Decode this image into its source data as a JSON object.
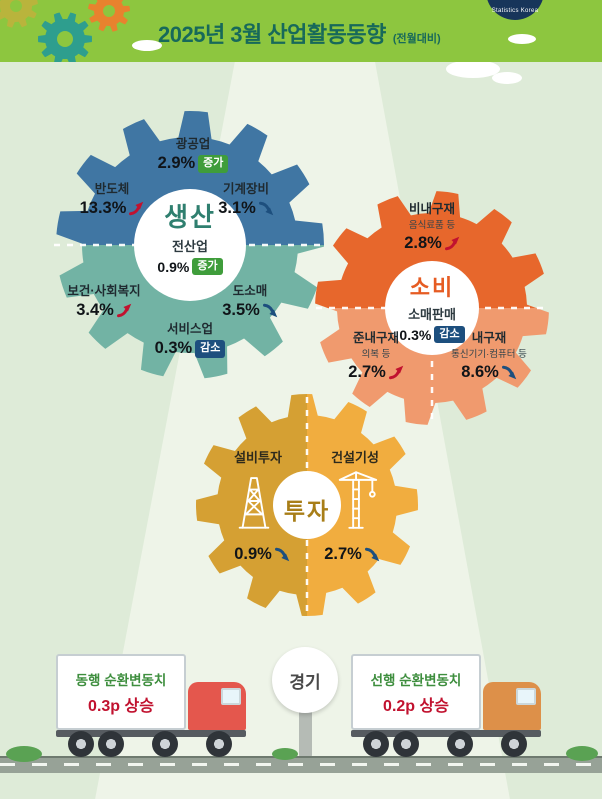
{
  "header": {
    "title": "2025년 3월 산업활동동향",
    "subtitle": "(전월대비)",
    "logo_text": "Statistics Korea"
  },
  "production": {
    "center": {
      "title": "생산",
      "subtitle": "전산업",
      "value": "0.9%",
      "badge": "증가"
    },
    "items": {
      "mining": {
        "label": "광공업",
        "value": "2.9%",
        "badge": "증가"
      },
      "semiconductor": {
        "label": "반도체",
        "value": "13.3%",
        "direction": "up"
      },
      "machinery": {
        "label": "기계장비",
        "value": "3.1%",
        "direction": "down"
      },
      "health": {
        "label": "보건·사회복지",
        "value": "3.4%",
        "direction": "up"
      },
      "retail": {
        "label": "도소매",
        "value": "3.5%",
        "direction": "down"
      },
      "services": {
        "label": "서비스업",
        "value": "0.3%",
        "badge": "감소"
      }
    }
  },
  "consumption": {
    "center": {
      "title": "소비",
      "subtitle": "소매판매",
      "value": "0.3%",
      "badge": "감소"
    },
    "items": {
      "nondurable": {
        "label": "비내구재",
        "sublabel": "음식료품 등",
        "value": "2.8%",
        "direction": "up"
      },
      "semidurable": {
        "label": "준내구재",
        "sublabel": "의복 등",
        "value": "2.7%",
        "direction": "up"
      },
      "durable": {
        "label": "내구재",
        "sublabel": "통신기기·컴퓨터 등",
        "value": "8.6%",
        "direction": "down"
      }
    }
  },
  "investment": {
    "center": {
      "title": "투자"
    },
    "items": {
      "facility": {
        "label": "설비투자",
        "value": "0.9%",
        "direction": "down"
      },
      "construction": {
        "label": "건설기성",
        "value": "2.7%",
        "direction": "down"
      }
    }
  },
  "economy": {
    "center": "경기",
    "coincident": {
      "label": "동행 순환변동치",
      "value": "0.3p 상승"
    },
    "leading": {
      "label": "선행 순환변동치",
      "value": "0.2p 상승"
    }
  },
  "icons": {
    "increase": "red up-right swoosh arrow",
    "decrease": "blue down-right swoosh arrow",
    "facility_investment": "oil-derrick lattice tower",
    "construction": "tower-crane with hook",
    "economy": "cargo trucks on road",
    "decoration": "interlocking gears and clouds"
  },
  "colors": {
    "header_green": "#8dc63f",
    "title_text": "#17695a",
    "production_top": "#4076a3",
    "production_bottom": "#72b3a4",
    "consumption_top": "#e7672c",
    "consumption_bottom": "#f09a6e",
    "investment_left": "#d5a033",
    "investment_right": "#f1ad3f",
    "increase_red": "#c1122f",
    "decrease_blue": "#1d4f7e",
    "badge_increase": "#3f9d3b",
    "badge_decrease": "#1d4f7e",
    "truck_label_green": "#3e8e3e"
  },
  "chart_data": {
    "type": "table",
    "title": "2025년 3월 산업활동동향",
    "subtitle": "전월대비 증감",
    "unit": "%",
    "groups": [
      {
        "name": "생산",
        "items": [
          {
            "label": "전산업",
            "change": 0.9
          },
          {
            "label": "광공업",
            "change": 2.9
          },
          {
            "label": "반도체",
            "change": 13.3
          },
          {
            "label": "기계장비",
            "change": -3.1
          },
          {
            "label": "보건·사회복지",
            "change": 3.4
          },
          {
            "label": "도소매",
            "change": -3.5
          },
          {
            "label": "서비스업",
            "change": -0.3
          }
        ]
      },
      {
        "name": "소비",
        "items": [
          {
            "label": "소매판매",
            "change": -0.3
          },
          {
            "label": "비내구재(음식료품 등)",
            "change": 2.8
          },
          {
            "label": "준내구재(의복 등)",
            "change": 2.7
          },
          {
            "label": "내구재(통신기기·컴퓨터 등)",
            "change": -8.6
          }
        ]
      },
      {
        "name": "투자",
        "items": [
          {
            "label": "설비투자",
            "change": -0.9
          },
          {
            "label": "건설기성",
            "change": -2.7
          }
        ]
      },
      {
        "name": "경기",
        "items": [
          {
            "label": "동행 순환변동치",
            "change": 0.3,
            "unit": "p"
          },
          {
            "label": "선행 순환변동치",
            "change": 0.2,
            "unit": "p"
          }
        ]
      }
    ]
  }
}
